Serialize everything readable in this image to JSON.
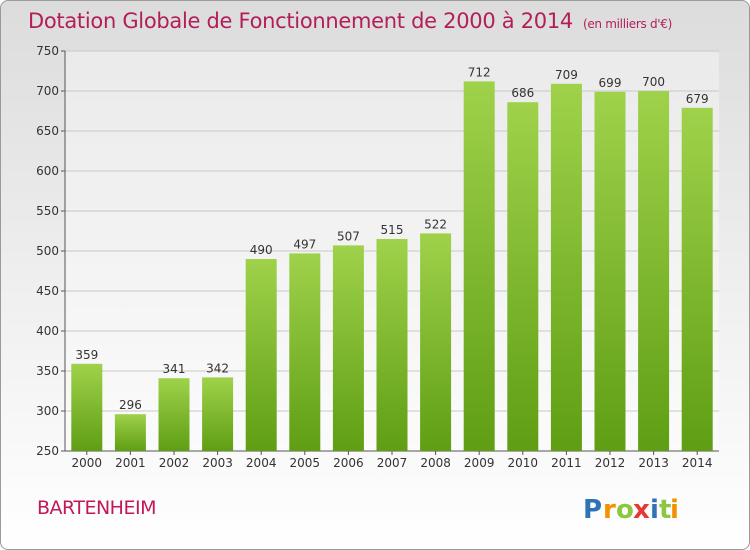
{
  "title": "Dotation Globale de Fonctionnement de 2000 à 2014",
  "subtitle": "(en milliers d'€)",
  "commune": "BARTENHEIM",
  "logo": {
    "text": "Proxiti",
    "letters": [
      "P",
      "r",
      "o",
      "x",
      "i",
      "t",
      "i"
    ]
  },
  "colors": {
    "title": "#b31e5a",
    "bar_top": "#9fd24a",
    "bar_bottom": "#5f9e14",
    "grid": "#c8c8c8",
    "logo": [
      "#2e74b5",
      "#f39200",
      "#8dc63f",
      "#e53935",
      "#2e74b5",
      "#8dc63f",
      "#f39200"
    ]
  },
  "chart_data": {
    "type": "bar",
    "title": "Dotation Globale de Fonctionnement de 2000 à 2014",
    "subtitle": "(en milliers d'€)",
    "categories": [
      "2000",
      "2001",
      "2002",
      "2003",
      "2004",
      "2005",
      "2006",
      "2007",
      "2008",
      "2009",
      "2010",
      "2011",
      "2012",
      "2013",
      "2014"
    ],
    "values": [
      359,
      296,
      341,
      342,
      490,
      497,
      507,
      515,
      522,
      712,
      686,
      709,
      699,
      700,
      679
    ],
    "xlabel": "",
    "ylabel": "",
    "ylim": [
      250,
      750
    ],
    "yticks": [
      250,
      300,
      350,
      400,
      450,
      500,
      550,
      600,
      650,
      700,
      750
    ],
    "grid": true,
    "legend": "none"
  }
}
